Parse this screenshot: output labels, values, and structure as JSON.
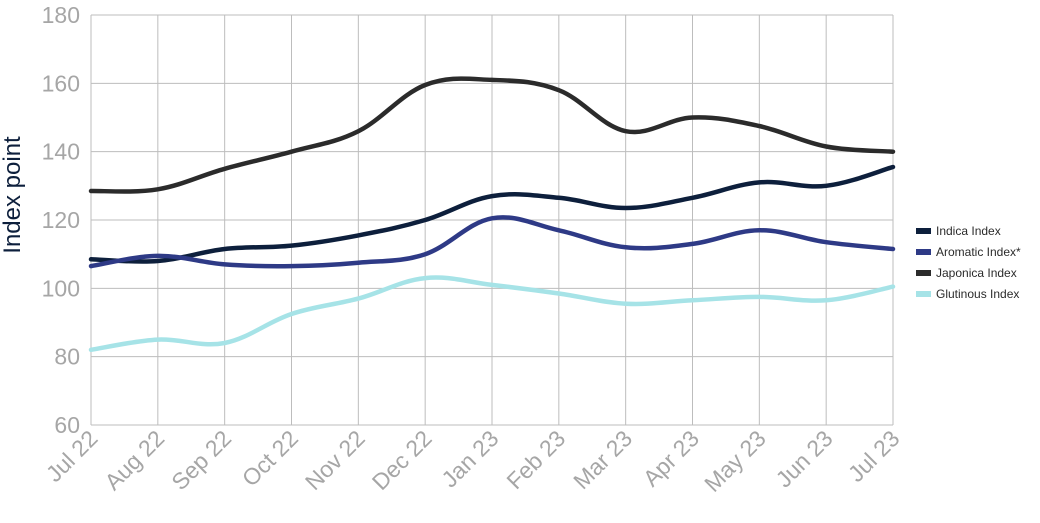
{
  "chart_data": {
    "type": "line",
    "title": "",
    "xlabel": "",
    "ylabel": "Index point",
    "ylim": [
      60,
      180
    ],
    "yticks": [
      60,
      80,
      100,
      120,
      140,
      160,
      180
    ],
    "grid": true,
    "legend_position": "right",
    "categories": [
      "Jul 22",
      "Aug 22",
      "Sep 22",
      "Oct 22",
      "Nov 22",
      "Dec 22",
      "Jan 23",
      "Feb 23",
      "Mar 23",
      "Apr 23",
      "May 23",
      "Jun 23",
      "Jul 23"
    ],
    "series": [
      {
        "name": "Indica Index",
        "color": "#0d1f3c",
        "values": [
          108.5,
          108.0,
          111.5,
          112.5,
          115.5,
          120.0,
          127.0,
          126.5,
          123.5,
          126.5,
          131.0,
          130.0,
          135.5
        ]
      },
      {
        "name": "Aromatic Index*",
        "color": "#2e3a86",
        "values": [
          106.5,
          109.5,
          107.0,
          106.5,
          107.5,
          110.0,
          120.5,
          117.0,
          112.0,
          113.0,
          117.0,
          113.5,
          111.5
        ]
      },
      {
        "name": "Japonica Index",
        "color": "#2b2b2b",
        "values": [
          128.5,
          129.0,
          135.0,
          140.0,
          146.0,
          159.5,
          161.0,
          158.0,
          146.0,
          150.0,
          147.5,
          141.5,
          140.0
        ]
      },
      {
        "name": "Glutinous Index",
        "color": "#a6e3e7",
        "values": [
          82.0,
          85.0,
          84.0,
          92.5,
          97.0,
          103.0,
          101.0,
          98.5,
          95.5,
          96.5,
          97.5,
          96.5,
          100.5
        ]
      }
    ]
  }
}
